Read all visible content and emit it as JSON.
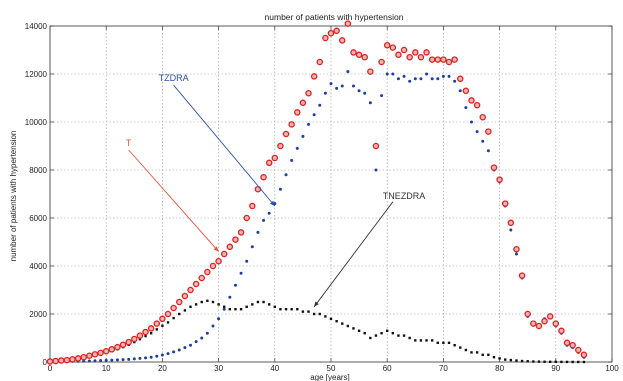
{
  "chart_data": {
    "type": "scatter",
    "title": "number of patients with hypertension",
    "xlabel": "age [years]",
    "ylabel": "number of patients with hypertension",
    "xlim": [
      0,
      100
    ],
    "ylim": [
      0,
      14000
    ],
    "xticks": [
      0,
      10,
      20,
      30,
      40,
      50,
      60,
      70,
      80,
      90,
      100
    ],
    "yticks": [
      0,
      2000,
      4000,
      6000,
      8000,
      10000,
      12000,
      14000
    ],
    "grid": true,
    "series": [
      {
        "name": "T",
        "color": "#e02020",
        "marker": "ring",
        "x": [
          0,
          1,
          2,
          3,
          4,
          5,
          6,
          7,
          8,
          9,
          10,
          11,
          12,
          13,
          14,
          15,
          16,
          17,
          18,
          19,
          20,
          21,
          22,
          23,
          24,
          25,
          26,
          27,
          28,
          29,
          30,
          31,
          32,
          33,
          34,
          35,
          36,
          37,
          38,
          39,
          40,
          41,
          42,
          43,
          44,
          45,
          46,
          47,
          48,
          49,
          50,
          51,
          52,
          53,
          54,
          55,
          56,
          57,
          58,
          59,
          60,
          61,
          62,
          63,
          64,
          65,
          66,
          67,
          68,
          69,
          70,
          71,
          72,
          73,
          74,
          75,
          76,
          77,
          78,
          79,
          80,
          81,
          82,
          83,
          84,
          85,
          86,
          87,
          88,
          89,
          90,
          91,
          92,
          93,
          94,
          95
        ],
        "y": [
          20,
          40,
          60,
          80,
          110,
          150,
          200,
          260,
          320,
          380,
          450,
          530,
          620,
          720,
          830,
          960,
          1100,
          1250,
          1400,
          1600,
          1800,
          2000,
          2250,
          2500,
          2750,
          3000,
          3250,
          3500,
          3750,
          4000,
          4200,
          4500,
          4800,
          5100,
          5400,
          6000,
          6500,
          7200,
          7700,
          8300,
          8500,
          9000,
          9500,
          9900,
          10400,
          10800,
          11200,
          11900,
          12500,
          13500,
          13700,
          13800,
          13400,
          14100,
          12900,
          12800,
          12700,
          12100,
          9000,
          12500,
          13200,
          13100,
          12800,
          13000,
          12700,
          12900,
          12700,
          12900,
          12600,
          12600,
          12600,
          12500,
          12600,
          11800,
          11300,
          10900,
          10700,
          10200,
          9600,
          8100,
          7600,
          6600,
          5800,
          4700,
          3600,
          2000,
          1600,
          1500,
          1700,
          1900,
          1600,
          1300,
          800,
          700,
          500,
          300
        ]
      },
      {
        "name": "TZDRA",
        "color": "#1f3fa0",
        "marker": "dot",
        "x": [
          0,
          1,
          2,
          3,
          4,
          5,
          6,
          7,
          8,
          9,
          10,
          11,
          12,
          13,
          14,
          15,
          16,
          17,
          18,
          19,
          20,
          21,
          22,
          23,
          24,
          25,
          26,
          27,
          28,
          29,
          30,
          31,
          32,
          33,
          34,
          35,
          36,
          37,
          38,
          39,
          40,
          41,
          42,
          43,
          44,
          45,
          46,
          47,
          48,
          49,
          50,
          51,
          52,
          53,
          54,
          55,
          56,
          57,
          58,
          59,
          60,
          61,
          62,
          63,
          64,
          65,
          66,
          67,
          68,
          69,
          70,
          71,
          72,
          73,
          74,
          75,
          76,
          77,
          78,
          79,
          80,
          81,
          82,
          83,
          84,
          85,
          86,
          87,
          88,
          89,
          90,
          91,
          92,
          93,
          94,
          95
        ],
        "y": [
          5,
          10,
          15,
          20,
          25,
          30,
          35,
          40,
          50,
          60,
          70,
          80,
          90,
          100,
          110,
          130,
          150,
          170,
          200,
          240,
          290,
          350,
          420,
          500,
          600,
          700,
          850,
          1000,
          1200,
          1500,
          1800,
          2200,
          2700,
          3200,
          3700,
          4200,
          4800,
          5400,
          5900,
          6200,
          6600,
          7200,
          7800,
          8400,
          8900,
          9400,
          9900,
          10300,
          10700,
          11200,
          11600,
          11400,
          11500,
          12100,
          11500,
          11300,
          11200,
          10800,
          8000,
          11100,
          12000,
          12000,
          11800,
          11900,
          11700,
          11800,
          11800,
          12000,
          11800,
          11800,
          11900,
          11900,
          11700,
          11300,
          10600,
          10000,
          9600,
          9200,
          8800,
          8000,
          7500,
          6500,
          5500,
          4500,
          3500,
          1900,
          1600,
          1500,
          1800,
          1900,
          1500,
          1200,
          700,
          600,
          400,
          200
        ]
      },
      {
        "name": "TNEZDRA",
        "color": "#111111",
        "marker": "square",
        "x": [
          0,
          1,
          2,
          3,
          4,
          5,
          6,
          7,
          8,
          9,
          10,
          11,
          12,
          13,
          14,
          15,
          16,
          17,
          18,
          19,
          20,
          21,
          22,
          23,
          24,
          25,
          26,
          27,
          28,
          29,
          30,
          31,
          32,
          33,
          34,
          35,
          36,
          37,
          38,
          39,
          40,
          41,
          42,
          43,
          44,
          45,
          46,
          47,
          48,
          49,
          50,
          51,
          52,
          53,
          54,
          55,
          56,
          57,
          58,
          59,
          60,
          61,
          62,
          63,
          64,
          65,
          66,
          67,
          68,
          69,
          70,
          71,
          72,
          73,
          74,
          75,
          76,
          77,
          78,
          79,
          80,
          81,
          82,
          83,
          84,
          85,
          86,
          87,
          88,
          89,
          90,
          91,
          92,
          93,
          94,
          95
        ],
        "y": [
          15,
          30,
          45,
          60,
          85,
          120,
          165,
          220,
          270,
          320,
          380,
          450,
          530,
          620,
          720,
          830,
          950,
          1080,
          1200,
          1360,
          1510,
          1650,
          1830,
          2000,
          2150,
          2300,
          2400,
          2500,
          2550,
          2500,
          2400,
          2300,
          2200,
          2200,
          2200,
          2300,
          2400,
          2500,
          2500,
          2400,
          2300,
          2200,
          2200,
          2200,
          2200,
          2100,
          2100,
          2000,
          2000,
          1900,
          1800,
          1700,
          1600,
          1500,
          1400,
          1300,
          1200,
          1000,
          1100,
          1200,
          1300,
          1200,
          1100,
          1100,
          1000,
          900,
          900,
          900,
          900,
          800,
          800,
          800,
          700,
          600,
          500,
          400,
          400,
          300,
          300,
          200,
          150,
          100,
          80,
          60,
          40,
          30,
          20,
          15,
          10,
          8,
          6,
          4,
          3,
          2,
          1,
          0
        ]
      }
    ],
    "annotations": [
      {
        "label": "T",
        "color": "#e8503a",
        "text_at": [
          14,
          9000
        ],
        "arrow_to": [
          30,
          4600
        ]
      },
      {
        "label": "TZDRA",
        "color": "#2a4fb0",
        "text_at": [
          22,
          11700
        ],
        "arrow_to": [
          40,
          6500
        ]
      },
      {
        "label": "TNEZDRA",
        "color": "#333333",
        "text_at": [
          61,
          6800
        ],
        "arrow_to": [
          47,
          2300
        ]
      }
    ]
  }
}
